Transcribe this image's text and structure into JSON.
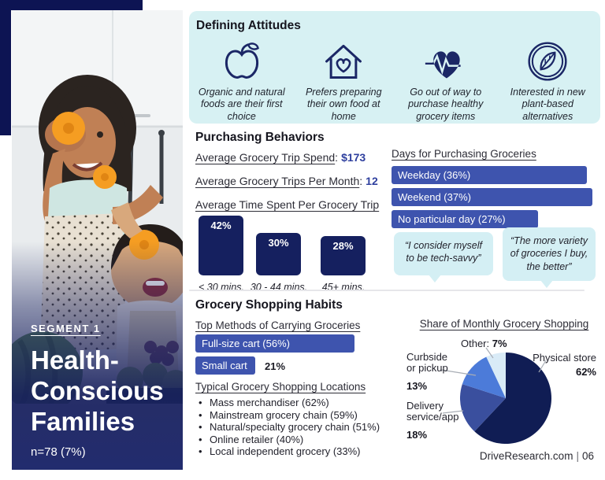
{
  "segment": {
    "tag": "SEGMENT 1",
    "title": "Health-Conscious Families",
    "sample_size": "n=78 (7%)"
  },
  "attitudes": {
    "heading": "Defining Attitudes",
    "items": [
      {
        "icon": "apple-icon",
        "text": "Organic and natural foods are their first choice"
      },
      {
        "icon": "house-heart-icon",
        "text": "Prefers preparing their own food at home"
      },
      {
        "icon": "heart-pulse-icon",
        "text": "Go out of way to purchase healthy grocery items"
      },
      {
        "icon": "leaf-circle-icon",
        "text": "Interested in new plant-based alternatives"
      }
    ]
  },
  "purchasing": {
    "heading": "Purchasing Behaviors",
    "stat1_label": "Average Grocery Trip Spend",
    "stat1_value": "$173",
    "stat2_label": "Average Grocery Trips Per Month",
    "stat2_value": "12",
    "stat3_label": "Average Time Spent Per Grocery Trip",
    "quotes": [
      "“I consider myself to be tech-savvy”",
      "“The more variety of groceries I buy, the better”"
    ]
  },
  "habits": {
    "heading": "Grocery Shopping Habits",
    "locations_heading": "Typical Grocery Shopping Locations",
    "locations": [
      "Mass merchandiser (62%)",
      "Mainstream grocery chain (59%)",
      "Natural/specialty grocery chain (51%)",
      "Online retailer (40%)",
      "Local independent grocery (33%)"
    ]
  },
  "footer": {
    "site": "DriveResearch.com",
    "separator": "|",
    "page": "06"
  },
  "colors": {
    "navy_dark": "#15205f",
    "royal_blue": "#3e54ae",
    "value_blue": "#2e3f9e",
    "panel_cyan": "#d7f1f3",
    "bubble_cyan": "#d4eff4",
    "accent_navy": "#0d1453"
  },
  "chart_data": [
    {
      "type": "bar",
      "title": "Average Time Spent Per Grocery Trip",
      "categories": [
        "< 30 mins.",
        "30 - 44 mins.",
        "45+ mins."
      ],
      "values": [
        42,
        30,
        28
      ],
      "display_values": [
        "42%",
        "30%",
        "28%"
      ],
      "unit": "%",
      "bar_color": "#15205f",
      "ylim": [
        0,
        45
      ]
    },
    {
      "type": "bar",
      "orientation": "horizontal",
      "title": "Days for Purchasing Groceries",
      "categories": [
        "Weekday",
        "Weekend",
        "No particular day"
      ],
      "values": [
        36,
        37,
        27
      ],
      "labels": [
        "Weekday (36%)",
        "Weekend (37%)",
        "No particular day (27%)"
      ],
      "unit": "%",
      "bar_color": "#3e54ae"
    },
    {
      "type": "bar",
      "orientation": "horizontal",
      "title": "Top Methods of Carrying Groceries",
      "categories": [
        "Full-size cart",
        "Small cart"
      ],
      "values": [
        56,
        21
      ],
      "labels": [
        "Full-size cart (56%)",
        "Small cart"
      ],
      "outside_value": "21%",
      "unit": "%",
      "bar_color": "#3e54ae"
    },
    {
      "type": "pie",
      "title": "Share of Monthly Grocery Shopping",
      "start_angle_deg": 0,
      "direction": "clockwise",
      "slices": [
        {
          "label": "Physical store",
          "value": 62,
          "display": "62%",
          "color": "#101d54"
        },
        {
          "label": "Delivery service/app",
          "value": 18,
          "display": "18%",
          "color": "#3a4f9e"
        },
        {
          "label": "Curbside or pickup",
          "value": 13,
          "display": "13%",
          "color": "#4c7bd9"
        },
        {
          "label": "Other",
          "label_with_colon": "Other:",
          "value": 7,
          "display": "7%",
          "color": "#d9ebf7"
        }
      ]
    }
  ]
}
